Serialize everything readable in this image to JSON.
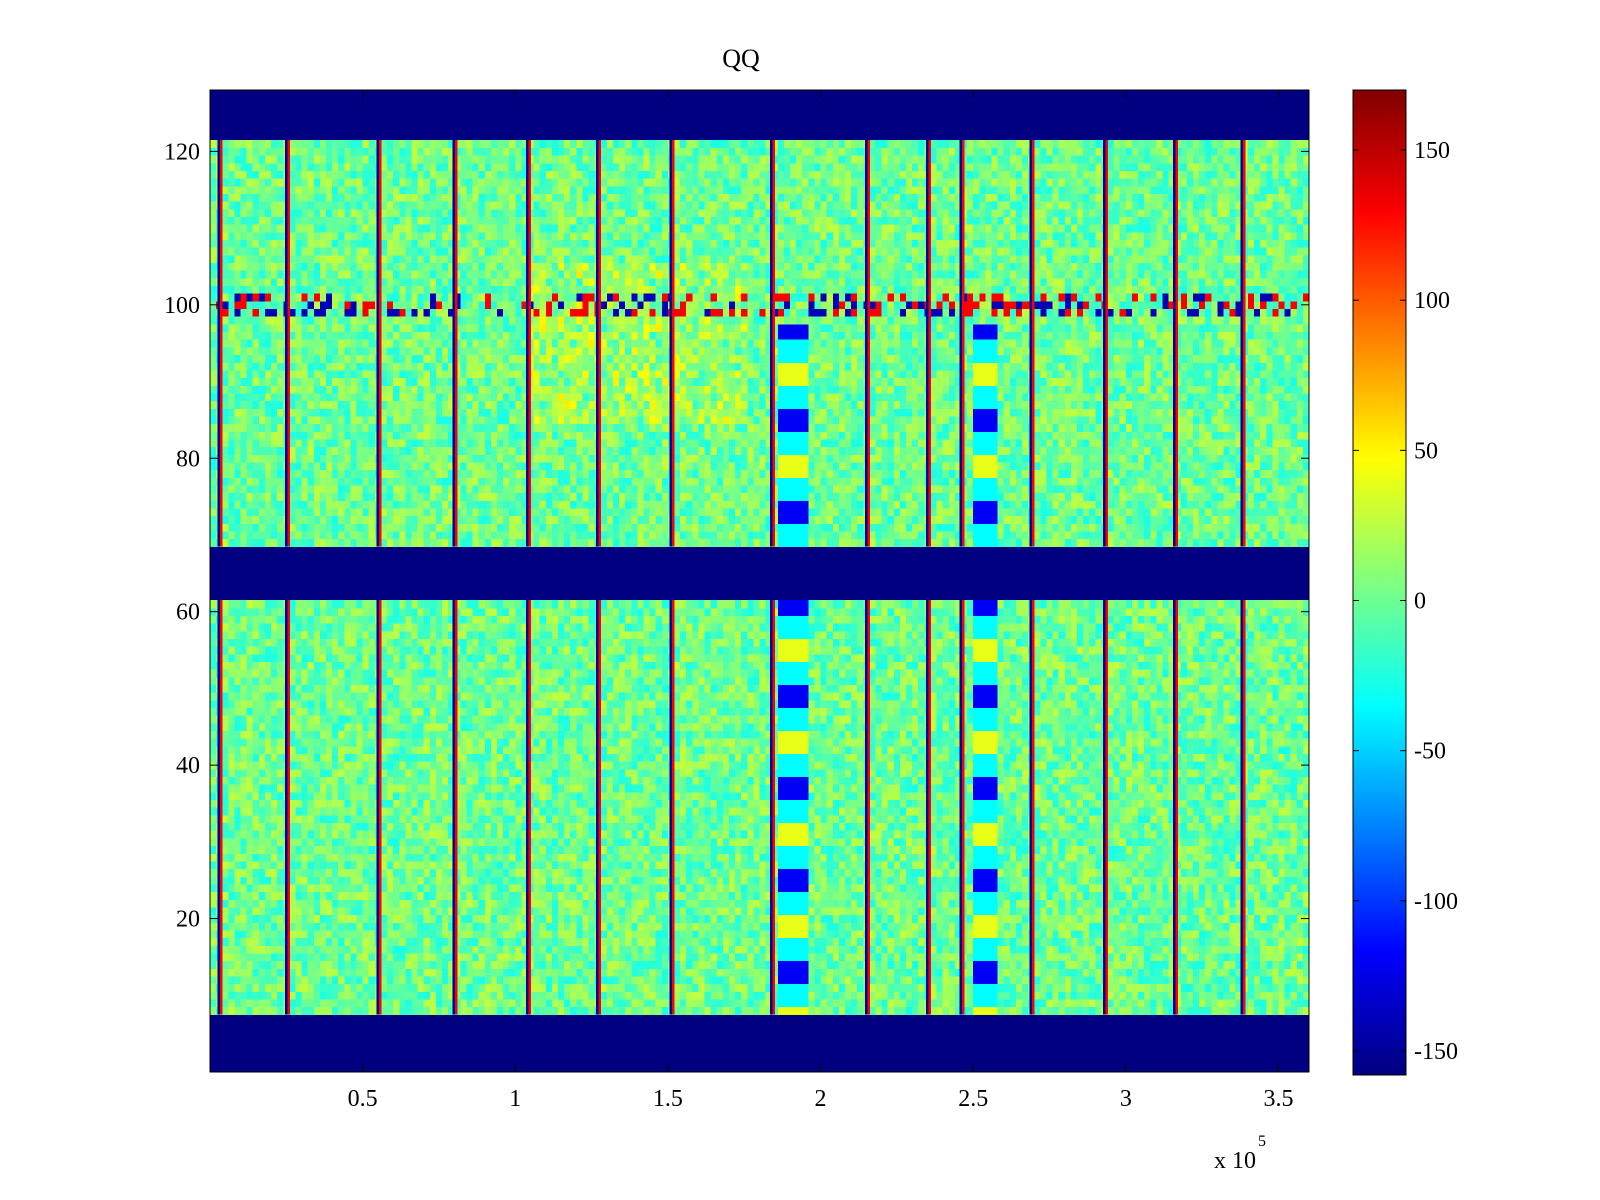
{
  "chart_data": {
    "type": "heatmap",
    "title": "QQ",
    "xlabel": "",
    "ylabel": "",
    "x_multiplier": "x 10",
    "x_multiplier_exponent": "5",
    "xlim": [
      0,
      3.6
    ],
    "ylim": [
      0,
      128
    ],
    "xticks": [
      0.5,
      1,
      1.5,
      2,
      2.5,
      3,
      3.5
    ],
    "xtick_labels": [
      "0.5",
      "1",
      "1.5",
      "2",
      "2.5",
      "3",
      "3.5"
    ],
    "yticks": [
      20,
      40,
      60,
      80,
      100,
      120
    ],
    "ytick_labels": [
      "20",
      "40",
      "60",
      "80",
      "100",
      "120"
    ],
    "colormap": "jet",
    "clim": [
      -158,
      170
    ],
    "colorbar_ticks": [
      150,
      100,
      50,
      0,
      -50,
      -100,
      -150
    ],
    "colorbar_tick_labels": [
      "150",
      "100",
      "50",
      "0",
      "-50",
      "-100",
      "-150"
    ],
    "grid": false,
    "background_value": -158,
    "empty_row_bands": [
      [
        0,
        7.5
      ],
      [
        61.5,
        68.5
      ],
      [
        121.5,
        128
      ]
    ],
    "data_row_bands": [
      [
        7.5,
        61.5
      ],
      [
        68.5,
        121.5
      ]
    ],
    "typical_value": 0,
    "vertical_boundary_lines_x": [
      0.03,
      0.25,
      0.55,
      0.8,
      1.04,
      1.27,
      1.51,
      1.84,
      2.15,
      2.35,
      2.46,
      2.69,
      2.93,
      3.16,
      3.38
    ],
    "disturbed_row_band": [
      98.5,
      101.5
    ],
    "striped_columns_x": [
      [
        1.87,
        1.95
      ],
      [
        2.49,
        2.57
      ]
    ],
    "warm_region": {
      "x": [
        1.05,
        1.75
      ],
      "y": [
        85,
        105
      ],
      "value": 30
    }
  }
}
